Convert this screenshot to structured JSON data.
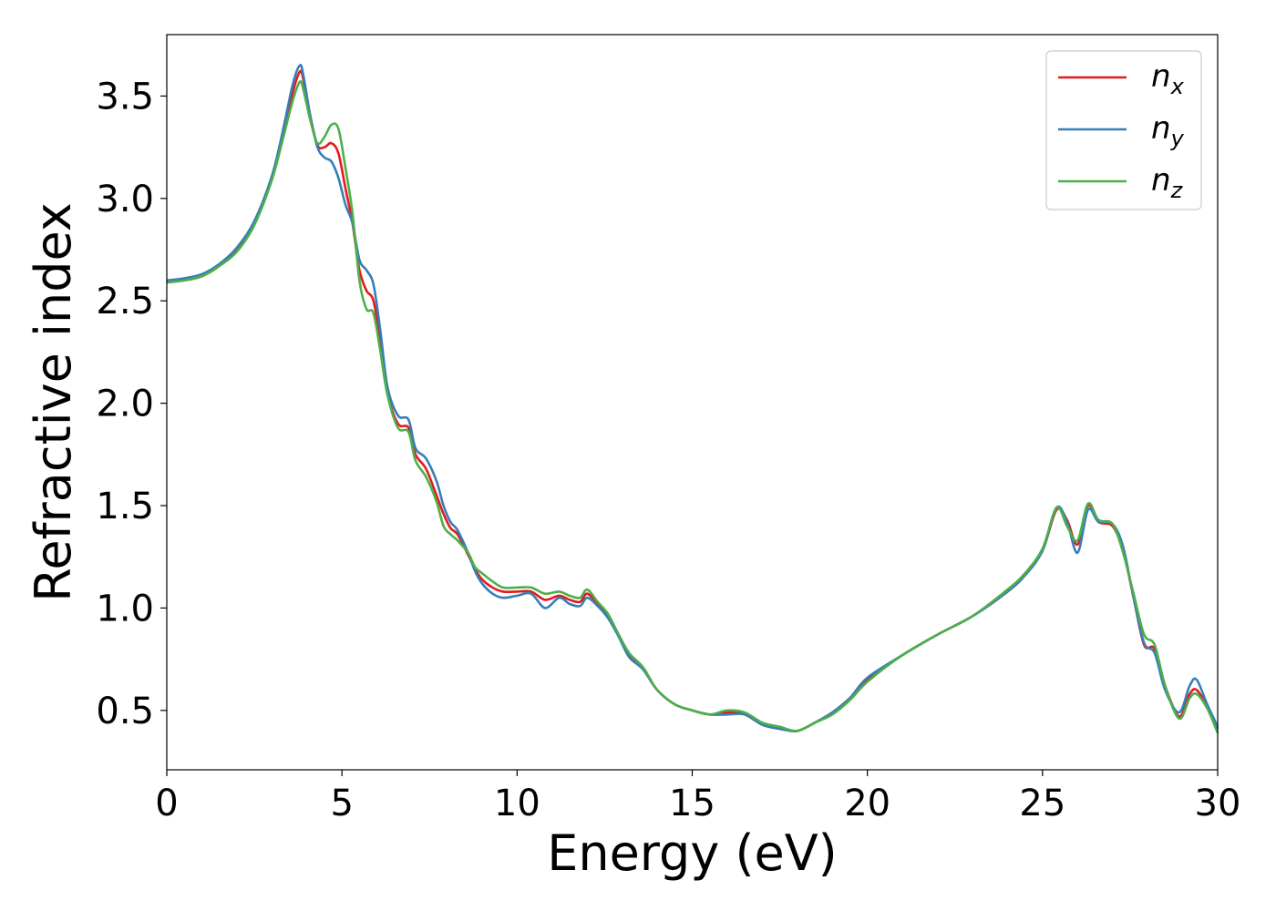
{
  "chart_data": {
    "type": "line",
    "title": "",
    "xlabel": "Energy (eV)",
    "ylabel": "Refractive index",
    "xlim": [
      0,
      30
    ],
    "ylim": [
      0.21,
      3.8
    ],
    "xticks": [
      0,
      5,
      10,
      15,
      20,
      25,
      30
    ],
    "xtick_labels": [
      "0",
      "5",
      "10",
      "15",
      "20",
      "25",
      "30"
    ],
    "yticks": [
      0.5,
      1.0,
      1.5,
      2.0,
      2.5,
      3.0,
      3.5
    ],
    "ytick_labels": [
      "0.5",
      "1.0",
      "1.5",
      "2.0",
      "2.5",
      "3.0",
      "3.5"
    ],
    "grid": false,
    "legend_position": "top-right",
    "series": [
      {
        "name": "n",
        "subscript": "x",
        "color": "#e41a1c",
        "x": [
          0,
          0.5,
          1,
          1.5,
          2,
          2.5,
          3,
          3.3,
          3.6,
          3.8,
          3.9,
          4.1,
          4.3,
          4.5,
          4.7,
          4.9,
          5.1,
          5.3,
          5.5,
          5.7,
          5.9,
          6.1,
          6.3,
          6.6,
          6.9,
          7.1,
          7.4,
          7.7,
          7.9,
          8.1,
          8.3,
          8.6,
          8.8,
          9.0,
          9.3,
          9.6,
          10.0,
          10.4,
          10.8,
          11.2,
          11.5,
          11.8,
          12.0,
          12.3,
          12.6,
          12.9,
          13.2,
          13.6,
          14.0,
          14.5,
          15.0,
          15.5,
          16.0,
          16.5,
          17.0,
          17.5,
          18.0,
          18.5,
          19.0,
          19.5,
          20.0,
          21.0,
          22.0,
          23.0,
          24.0,
          24.5,
          25.0,
          25.4,
          25.7,
          26.0,
          26.3,
          26.6,
          27.0,
          27.3,
          27.6,
          27.9,
          28.2,
          28.5,
          28.9,
          29.2,
          29.4,
          29.7,
          30.0
        ],
        "y": [
          2.59,
          2.6,
          2.62,
          2.67,
          2.75,
          2.88,
          3.1,
          3.3,
          3.52,
          3.62,
          3.58,
          3.4,
          3.26,
          3.25,
          3.27,
          3.22,
          3.05,
          2.88,
          2.65,
          2.55,
          2.5,
          2.3,
          2.05,
          1.9,
          1.88,
          1.75,
          1.68,
          1.55,
          1.46,
          1.39,
          1.36,
          1.26,
          1.19,
          1.14,
          1.1,
          1.08,
          1.08,
          1.08,
          1.04,
          1.06,
          1.04,
          1.03,
          1.07,
          1.02,
          0.96,
          0.87,
          0.77,
          0.7,
          0.6,
          0.53,
          0.5,
          0.48,
          0.49,
          0.48,
          0.43,
          0.41,
          0.4,
          0.44,
          0.49,
          0.56,
          0.65,
          0.77,
          0.87,
          0.96,
          1.08,
          1.16,
          1.28,
          1.48,
          1.43,
          1.31,
          1.5,
          1.42,
          1.4,
          1.28,
          1.05,
          0.82,
          0.8,
          0.62,
          0.47,
          0.58,
          0.6,
          0.52,
          0.41
        ]
      },
      {
        "name": "n",
        "subscript": "y",
        "color": "#377eb8",
        "x": [
          0,
          0.5,
          1,
          1.5,
          2,
          2.5,
          3,
          3.3,
          3.6,
          3.8,
          3.9,
          4.1,
          4.3,
          4.5,
          4.7,
          4.9,
          5.1,
          5.3,
          5.5,
          5.7,
          5.9,
          6.1,
          6.3,
          6.6,
          6.9,
          7.1,
          7.4,
          7.7,
          7.9,
          8.1,
          8.3,
          8.6,
          8.8,
          9.0,
          9.3,
          9.6,
          10.0,
          10.4,
          10.8,
          11.2,
          11.5,
          11.8,
          12.0,
          12.3,
          12.6,
          12.9,
          13.2,
          13.6,
          14.0,
          14.5,
          15.0,
          15.5,
          16.0,
          16.5,
          17.0,
          17.5,
          18.0,
          18.5,
          19.0,
          19.5,
          20.0,
          21.0,
          22.0,
          23.0,
          24.0,
          24.5,
          25.0,
          25.4,
          25.7,
          26.0,
          26.3,
          26.6,
          27.0,
          27.3,
          27.6,
          27.9,
          28.2,
          28.5,
          28.9,
          29.2,
          29.4,
          29.7,
          30.0
        ],
        "y": [
          2.6,
          2.61,
          2.63,
          2.68,
          2.76,
          2.89,
          3.11,
          3.32,
          3.56,
          3.65,
          3.6,
          3.4,
          3.25,
          3.2,
          3.18,
          3.1,
          2.97,
          2.88,
          2.7,
          2.65,
          2.58,
          2.35,
          2.08,
          1.94,
          1.92,
          1.78,
          1.73,
          1.62,
          1.5,
          1.42,
          1.38,
          1.27,
          1.18,
          1.12,
          1.07,
          1.05,
          1.06,
          1.07,
          1.0,
          1.05,
          1.02,
          1.01,
          1.05,
          1.01,
          0.95,
          0.86,
          0.76,
          0.7,
          0.6,
          0.53,
          0.5,
          0.48,
          0.48,
          0.48,
          0.43,
          0.41,
          0.4,
          0.44,
          0.49,
          0.56,
          0.66,
          0.77,
          0.87,
          0.96,
          1.08,
          1.16,
          1.28,
          1.49,
          1.42,
          1.27,
          1.48,
          1.42,
          1.41,
          1.3,
          1.05,
          0.83,
          0.78,
          0.6,
          0.49,
          0.62,
          0.65,
          0.53,
          0.42
        ]
      },
      {
        "name": "n",
        "subscript": "z",
        "color": "#4daf4a",
        "x": [
          0,
          0.5,
          1,
          1.5,
          2,
          2.5,
          3,
          3.3,
          3.6,
          3.8,
          3.9,
          4.1,
          4.3,
          4.5,
          4.7,
          4.9,
          5.1,
          5.3,
          5.5,
          5.7,
          5.9,
          6.1,
          6.3,
          6.6,
          6.9,
          7.1,
          7.4,
          7.7,
          7.9,
          8.1,
          8.3,
          8.6,
          8.8,
          9.0,
          9.3,
          9.6,
          10.0,
          10.4,
          10.8,
          11.2,
          11.5,
          11.8,
          12.0,
          12.3,
          12.6,
          12.9,
          13.2,
          13.6,
          14.0,
          14.5,
          15.0,
          15.5,
          16.0,
          16.5,
          17.0,
          17.5,
          18.0,
          18.5,
          19.0,
          19.5,
          20.0,
          21.0,
          22.0,
          23.0,
          24.0,
          24.5,
          25.0,
          25.4,
          25.7,
          26.0,
          26.3,
          26.6,
          27.0,
          27.3,
          27.6,
          27.9,
          28.2,
          28.5,
          28.9,
          29.2,
          29.4,
          29.7,
          30.0
        ],
        "y": [
          2.59,
          2.6,
          2.62,
          2.67,
          2.74,
          2.87,
          3.09,
          3.28,
          3.48,
          3.57,
          3.53,
          3.38,
          3.27,
          3.3,
          3.36,
          3.34,
          3.15,
          2.93,
          2.6,
          2.46,
          2.44,
          2.25,
          2.04,
          1.88,
          1.86,
          1.72,
          1.64,
          1.52,
          1.4,
          1.36,
          1.33,
          1.27,
          1.2,
          1.17,
          1.13,
          1.1,
          1.1,
          1.1,
          1.07,
          1.08,
          1.06,
          1.05,
          1.09,
          1.03,
          0.97,
          0.87,
          0.78,
          0.71,
          0.6,
          0.53,
          0.5,
          0.48,
          0.5,
          0.49,
          0.44,
          0.42,
          0.4,
          0.44,
          0.48,
          0.55,
          0.64,
          0.77,
          0.87,
          0.96,
          1.09,
          1.17,
          1.29,
          1.49,
          1.4,
          1.33,
          1.51,
          1.43,
          1.41,
          1.27,
          1.07,
          0.87,
          0.82,
          0.62,
          0.46,
          0.56,
          0.58,
          0.51,
          0.39
        ]
      }
    ]
  }
}
